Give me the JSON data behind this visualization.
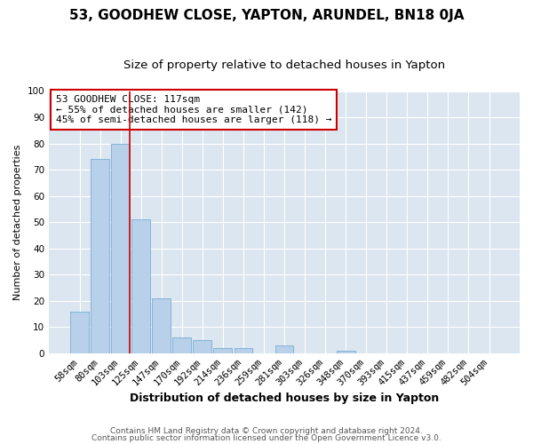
{
  "title": "53, GOODHEW CLOSE, YAPTON, ARUNDEL, BN18 0JA",
  "subtitle": "Size of property relative to detached houses in Yapton",
  "xlabel": "Distribution of detached houses by size in Yapton",
  "ylabel": "Number of detached properties",
  "bar_labels": [
    "58sqm",
    "80sqm",
    "103sqm",
    "125sqm",
    "147sqm",
    "170sqm",
    "192sqm",
    "214sqm",
    "236sqm",
    "259sqm",
    "281sqm",
    "303sqm",
    "326sqm",
    "348sqm",
    "370sqm",
    "393sqm",
    "415sqm",
    "437sqm",
    "459sqm",
    "482sqm",
    "504sqm"
  ],
  "bar_values": [
    16,
    74,
    80,
    51,
    21,
    6,
    5,
    2,
    2,
    0,
    3,
    0,
    0,
    1,
    0,
    0,
    0,
    0,
    0,
    0,
    0
  ],
  "bar_color": "#b8d0ea",
  "bar_edgecolor": "#7aadd4",
  "plot_bg_color": "#dce6f0",
  "fig_bg_color": "#ffffff",
  "grid_color": "#ffffff",
  "vline_color": "#cc0000",
  "annotation_text": "53 GOODHEW CLOSE: 117sqm\n← 55% of detached houses are smaller (142)\n45% of semi-detached houses are larger (118) →",
  "annotation_box_edgecolor": "#cc0000",
  "ylim": [
    0,
    100
  ],
  "yticks": [
    0,
    10,
    20,
    30,
    40,
    50,
    60,
    70,
    80,
    90,
    100
  ],
  "footer_line1": "Contains HM Land Registry data © Crown copyright and database right 2024.",
  "footer_line2": "Contains public sector information licensed under the Open Government Licence v3.0.",
  "title_fontsize": 11,
  "subtitle_fontsize": 9.5,
  "xlabel_fontsize": 9,
  "ylabel_fontsize": 8,
  "tick_fontsize": 7.5,
  "annotation_fontsize": 8,
  "footer_fontsize": 6.5
}
